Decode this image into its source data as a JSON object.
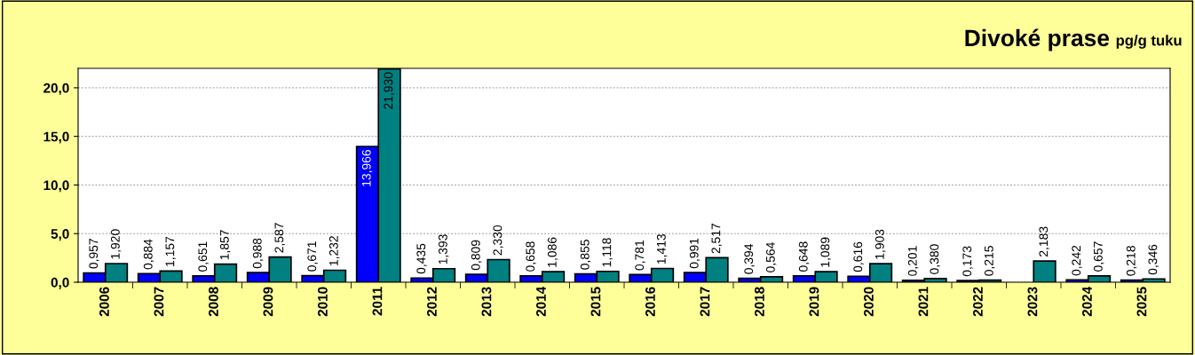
{
  "chart_data": {
    "type": "bar",
    "title": "Divoké prase",
    "subtitle": "pg/g tuku",
    "categories": [
      "2006",
      "2007",
      "2008",
      "2009",
      "2010",
      "2011",
      "2012",
      "2013",
      "2014",
      "2015",
      "2016",
      "2017",
      "2018",
      "2019",
      "2020",
      "2021",
      "2022",
      "2023",
      "2024",
      "2025"
    ],
    "series": [
      {
        "color": "#0000ff",
        "values": [
          0.957,
          0.884,
          0.651,
          0.988,
          0.671,
          13.966,
          0.435,
          0.809,
          0.658,
          0.855,
          0.781,
          0.991,
          0.394,
          0.648,
          0.616,
          0.201,
          0.173,
          null,
          0.242,
          0.218
        ],
        "value_labels": [
          "0,957",
          "0,884",
          "0,651",
          "0,988",
          "0,671",
          "13,966",
          "0,435",
          "0,809",
          "0,658",
          "0,855",
          "0,781",
          "0,991",
          "0,394",
          "0,648",
          "0,616",
          "0,201",
          "0,173",
          null,
          "0,242",
          "0,218"
        ]
      },
      {
        "color": "#008080",
        "values": [
          1.92,
          1.157,
          1.857,
          2.587,
          1.232,
          21.93,
          1.393,
          2.33,
          1.086,
          1.118,
          1.413,
          2.517,
          0.564,
          1.089,
          1.903,
          0.38,
          0.215,
          2.183,
          0.657,
          0.346
        ],
        "value_labels": [
          "1,920",
          "1,157",
          "1,857",
          "2,587",
          "1,232",
          "21,930",
          "1,393",
          "2,330",
          "1,086",
          "1,118",
          "1,413",
          "2,517",
          "0,564",
          "1,089",
          "1,903",
          "0,380",
          "0,215",
          "2,183",
          "0,657",
          "0,346"
        ]
      }
    ],
    "ylim": [
      0,
      22
    ],
    "yticks": [
      {
        "value": 0,
        "label": "0,0"
      },
      {
        "value": 5,
        "label": "5,0"
      },
      {
        "value": 10,
        "label": "10,0"
      },
      {
        "value": 15,
        "label": "15,0"
      },
      {
        "value": 20,
        "label": "20,0"
      }
    ],
    "grid": "y",
    "legend": false
  }
}
